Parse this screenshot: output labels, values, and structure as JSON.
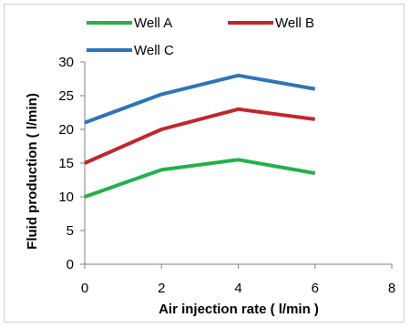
{
  "chart_data": {
    "type": "line",
    "title": "",
    "xlabel": "Air injection rate ( l/min )",
    "ylabel": "Fluid production ( l/min)",
    "xlim": [
      0,
      8
    ],
    "ylim": [
      0,
      30
    ],
    "xticks": [
      "0",
      "2",
      "4",
      "6",
      "8"
    ],
    "yticks": [
      "0",
      "5",
      "10",
      "15",
      "20",
      "25",
      "30"
    ],
    "grid": false,
    "legend_position": "top",
    "x": [
      0,
      2,
      4,
      6
    ],
    "series": [
      {
        "name": "Well A",
        "color": "#22b14c",
        "values": [
          10,
          14,
          15.5,
          13.5
        ]
      },
      {
        "name": "Well B",
        "color": "#c0272d",
        "values": [
          15,
          20,
          23,
          21.5
        ]
      },
      {
        "name": "Well C",
        "color": "#2e75b6",
        "values": [
          21,
          25.2,
          28,
          26
        ]
      }
    ]
  }
}
